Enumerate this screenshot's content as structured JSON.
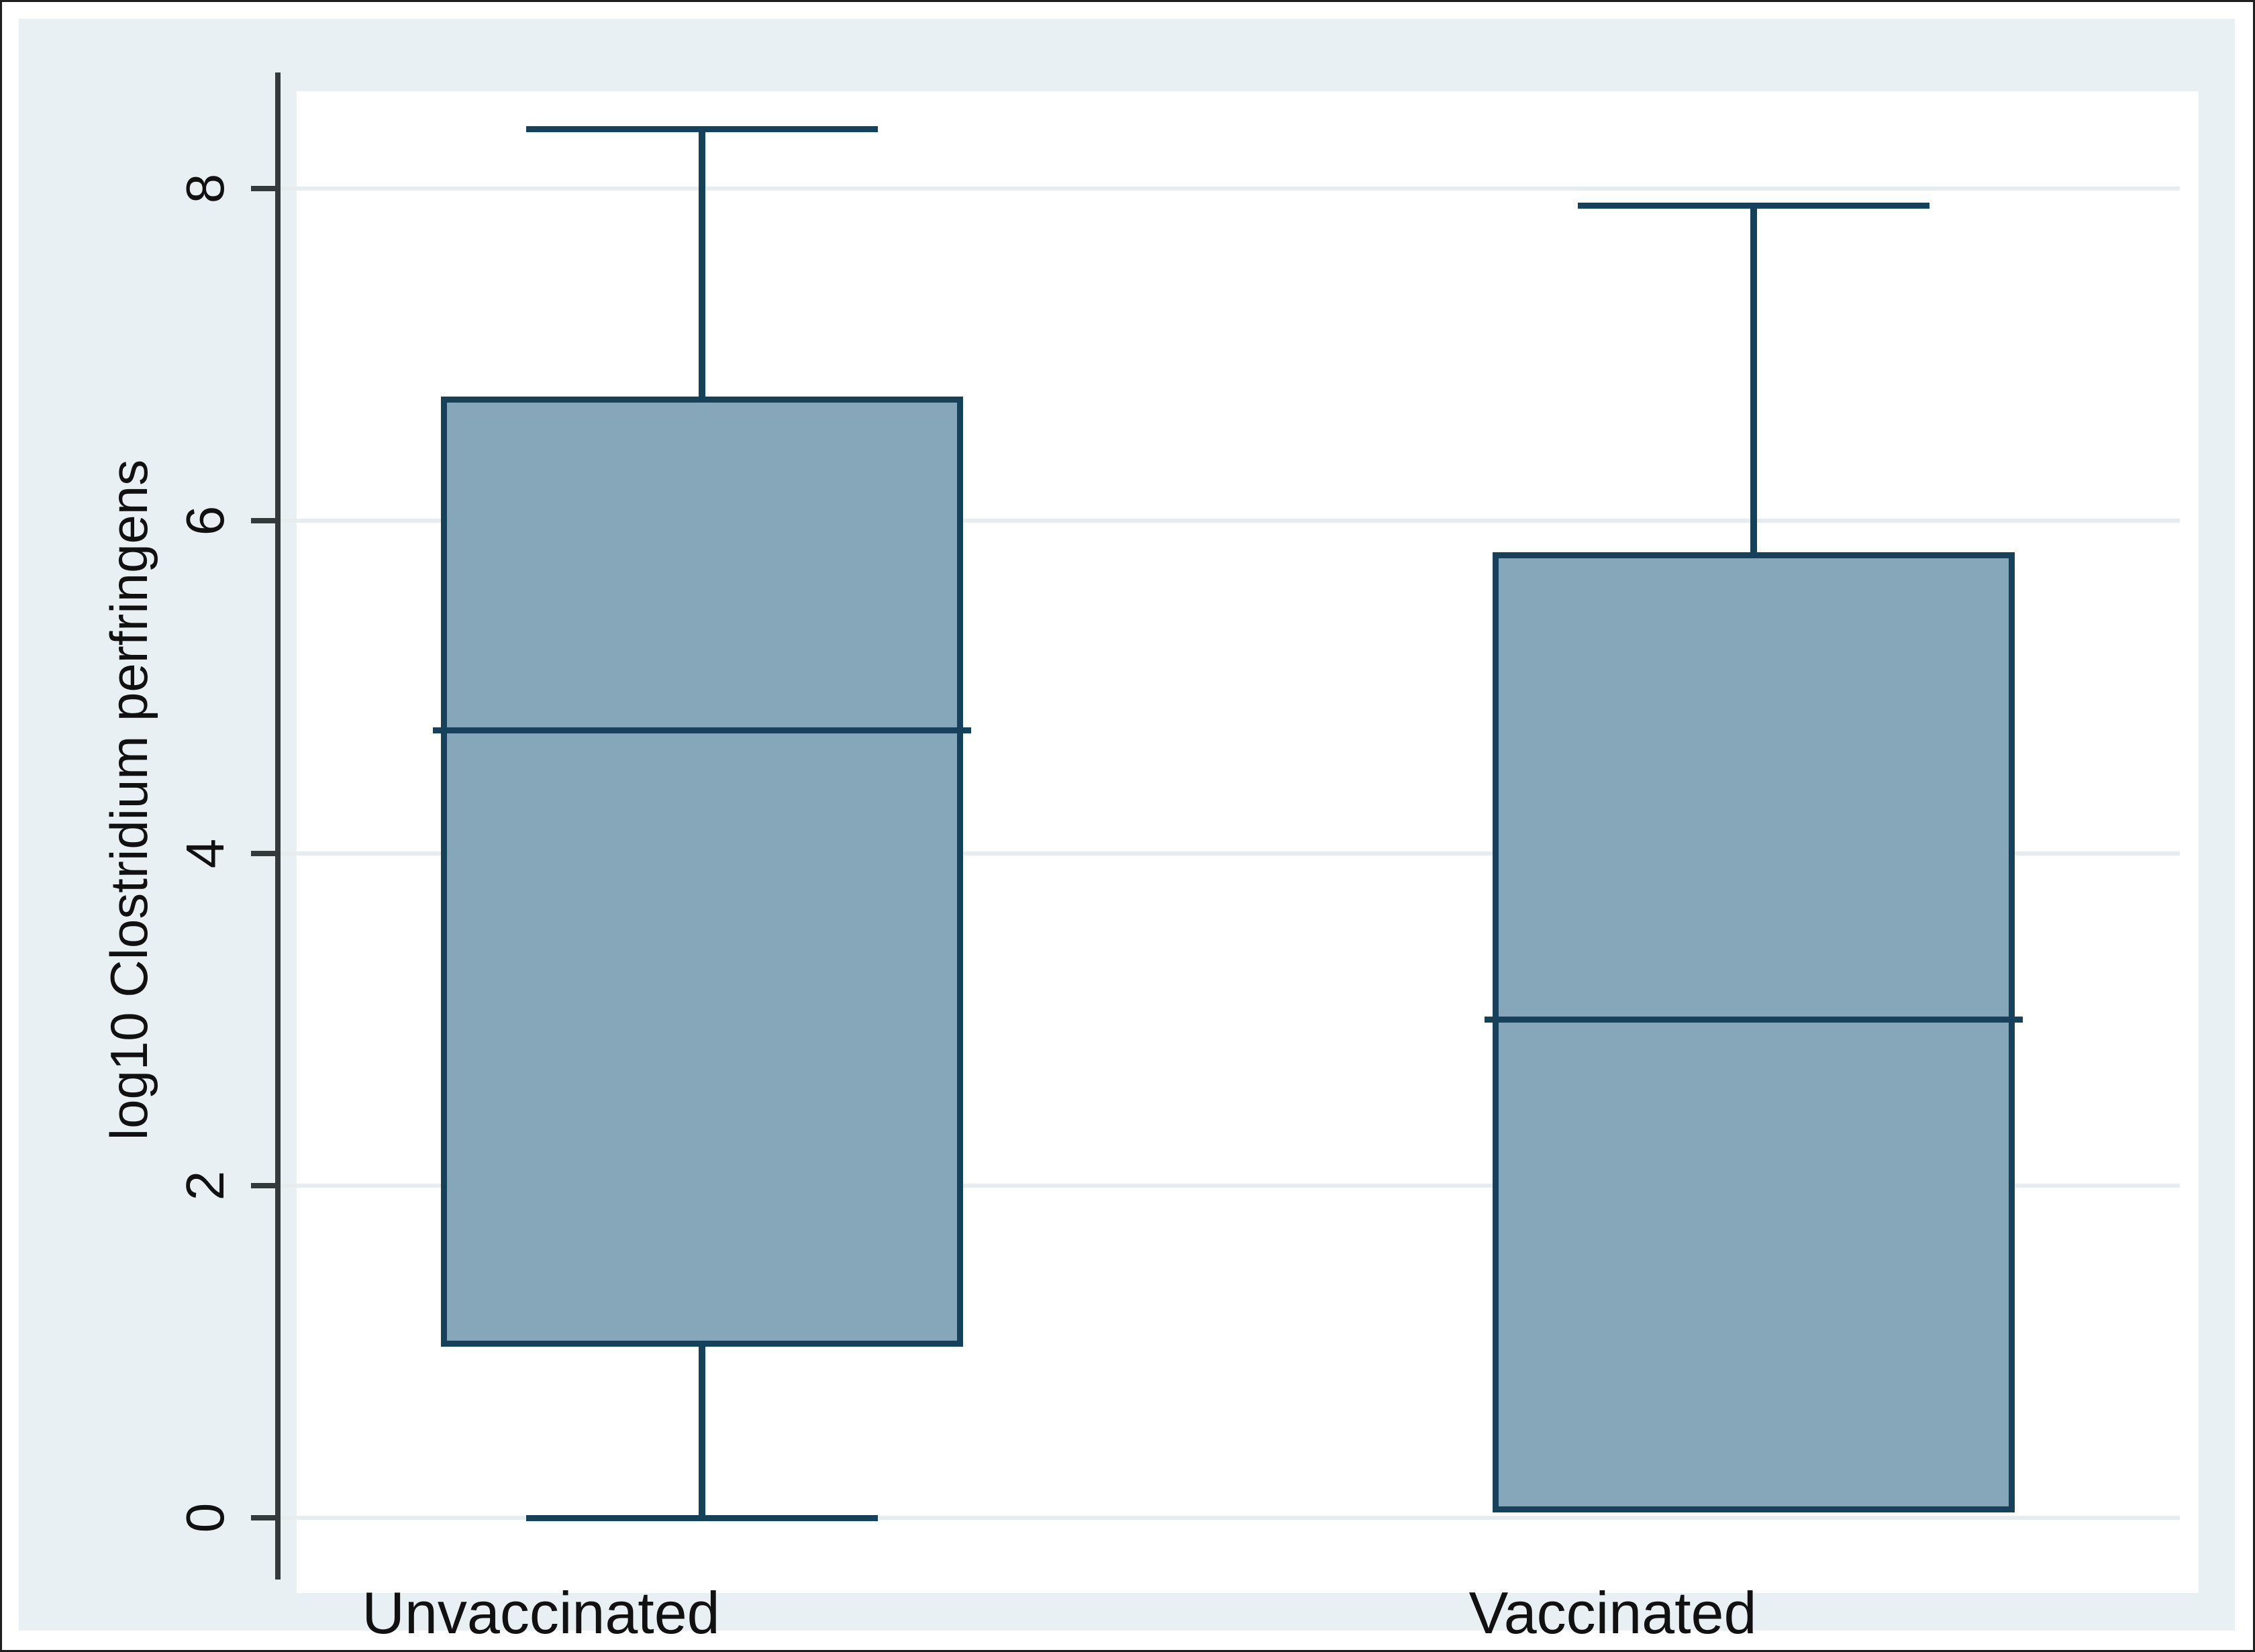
{
  "figure": {
    "colors": {
      "canvas_bg": "#e8f0f3",
      "plot_bg": "#ffffff",
      "gridline": "#e7edef",
      "axis": "#34393c",
      "box_fill": "#86a6ba",
      "box_line": "#15425a",
      "text": "#111111",
      "frame": "#1f1f1f"
    }
  },
  "chart_data": {
    "type": "boxplot",
    "title": "",
    "xlabel": "",
    "ylabel": "log10 Clostridium perfringens",
    "ylim": [
      -0.34,
      8.7
    ],
    "y_ticks": [
      0,
      2,
      4,
      6,
      8
    ],
    "y_tick_labels": [
      "0",
      "2",
      "4",
      "6",
      "8"
    ],
    "grid": true,
    "legend": "none",
    "groups": [
      {
        "label": "Unvaccinated",
        "whisker_low": 0.0,
        "q1": 1.03,
        "median": 4.74,
        "q3": 6.75,
        "whisker_high": 8.36
      },
      {
        "label": "Vaccinated",
        "whisker_low": null,
        "q1": 0.03,
        "median": 3.0,
        "q3": 5.81,
        "whisker_high": 7.9
      }
    ]
  }
}
